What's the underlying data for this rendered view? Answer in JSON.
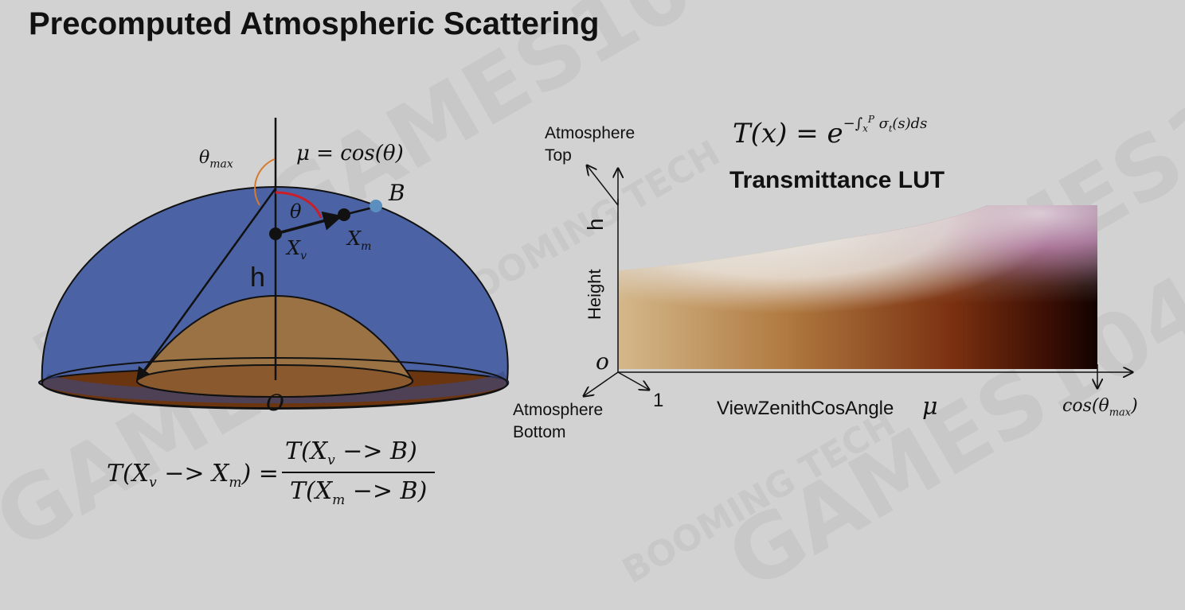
{
  "slide": {
    "title": "Precomputed Atmospheric Scattering",
    "watermarks": [
      "GAMES104",
      "BOOMING TECH"
    ]
  },
  "left_diagram": {
    "theta_max_label": "θmax",
    "mu_equation": "μ = cos(θ)",
    "point_b": "B",
    "theta": "θ",
    "xv": "X",
    "xv_sub": "v",
    "xm": "X",
    "xm_sub": "m",
    "h": "h",
    "origin": "O",
    "colors": {
      "atmosphere": "#4b62a4",
      "ground": "#9a7244",
      "ground_base": "#6b3510",
      "theta_arc": "#cc1e28",
      "theta_max_arc": "#d87a2c",
      "point_b": "#5b8fc0"
    }
  },
  "formula_bottom": {
    "lhs": "T(Xv −> Xm) =",
    "numerator": "T(Xv −> B)",
    "denominator": "T(Xm −> B)"
  },
  "lut": {
    "transmittance_formula": "T(x) = e^(−∫x^P σt(s)ds)",
    "title": "Transmittance LUT",
    "atmosphere_top": [
      "Atmosphere",
      "Top"
    ],
    "atmosphere_bottom": [
      "Atmosphere",
      "Bottom"
    ],
    "h_label": "h",
    "height_label": "Height",
    "origin_label": "o",
    "one_label": "1",
    "x_axis_label": "ViewZenithCosAngle",
    "mu_symbol": "μ",
    "cos_theta_max": "cos(θmax)"
  }
}
